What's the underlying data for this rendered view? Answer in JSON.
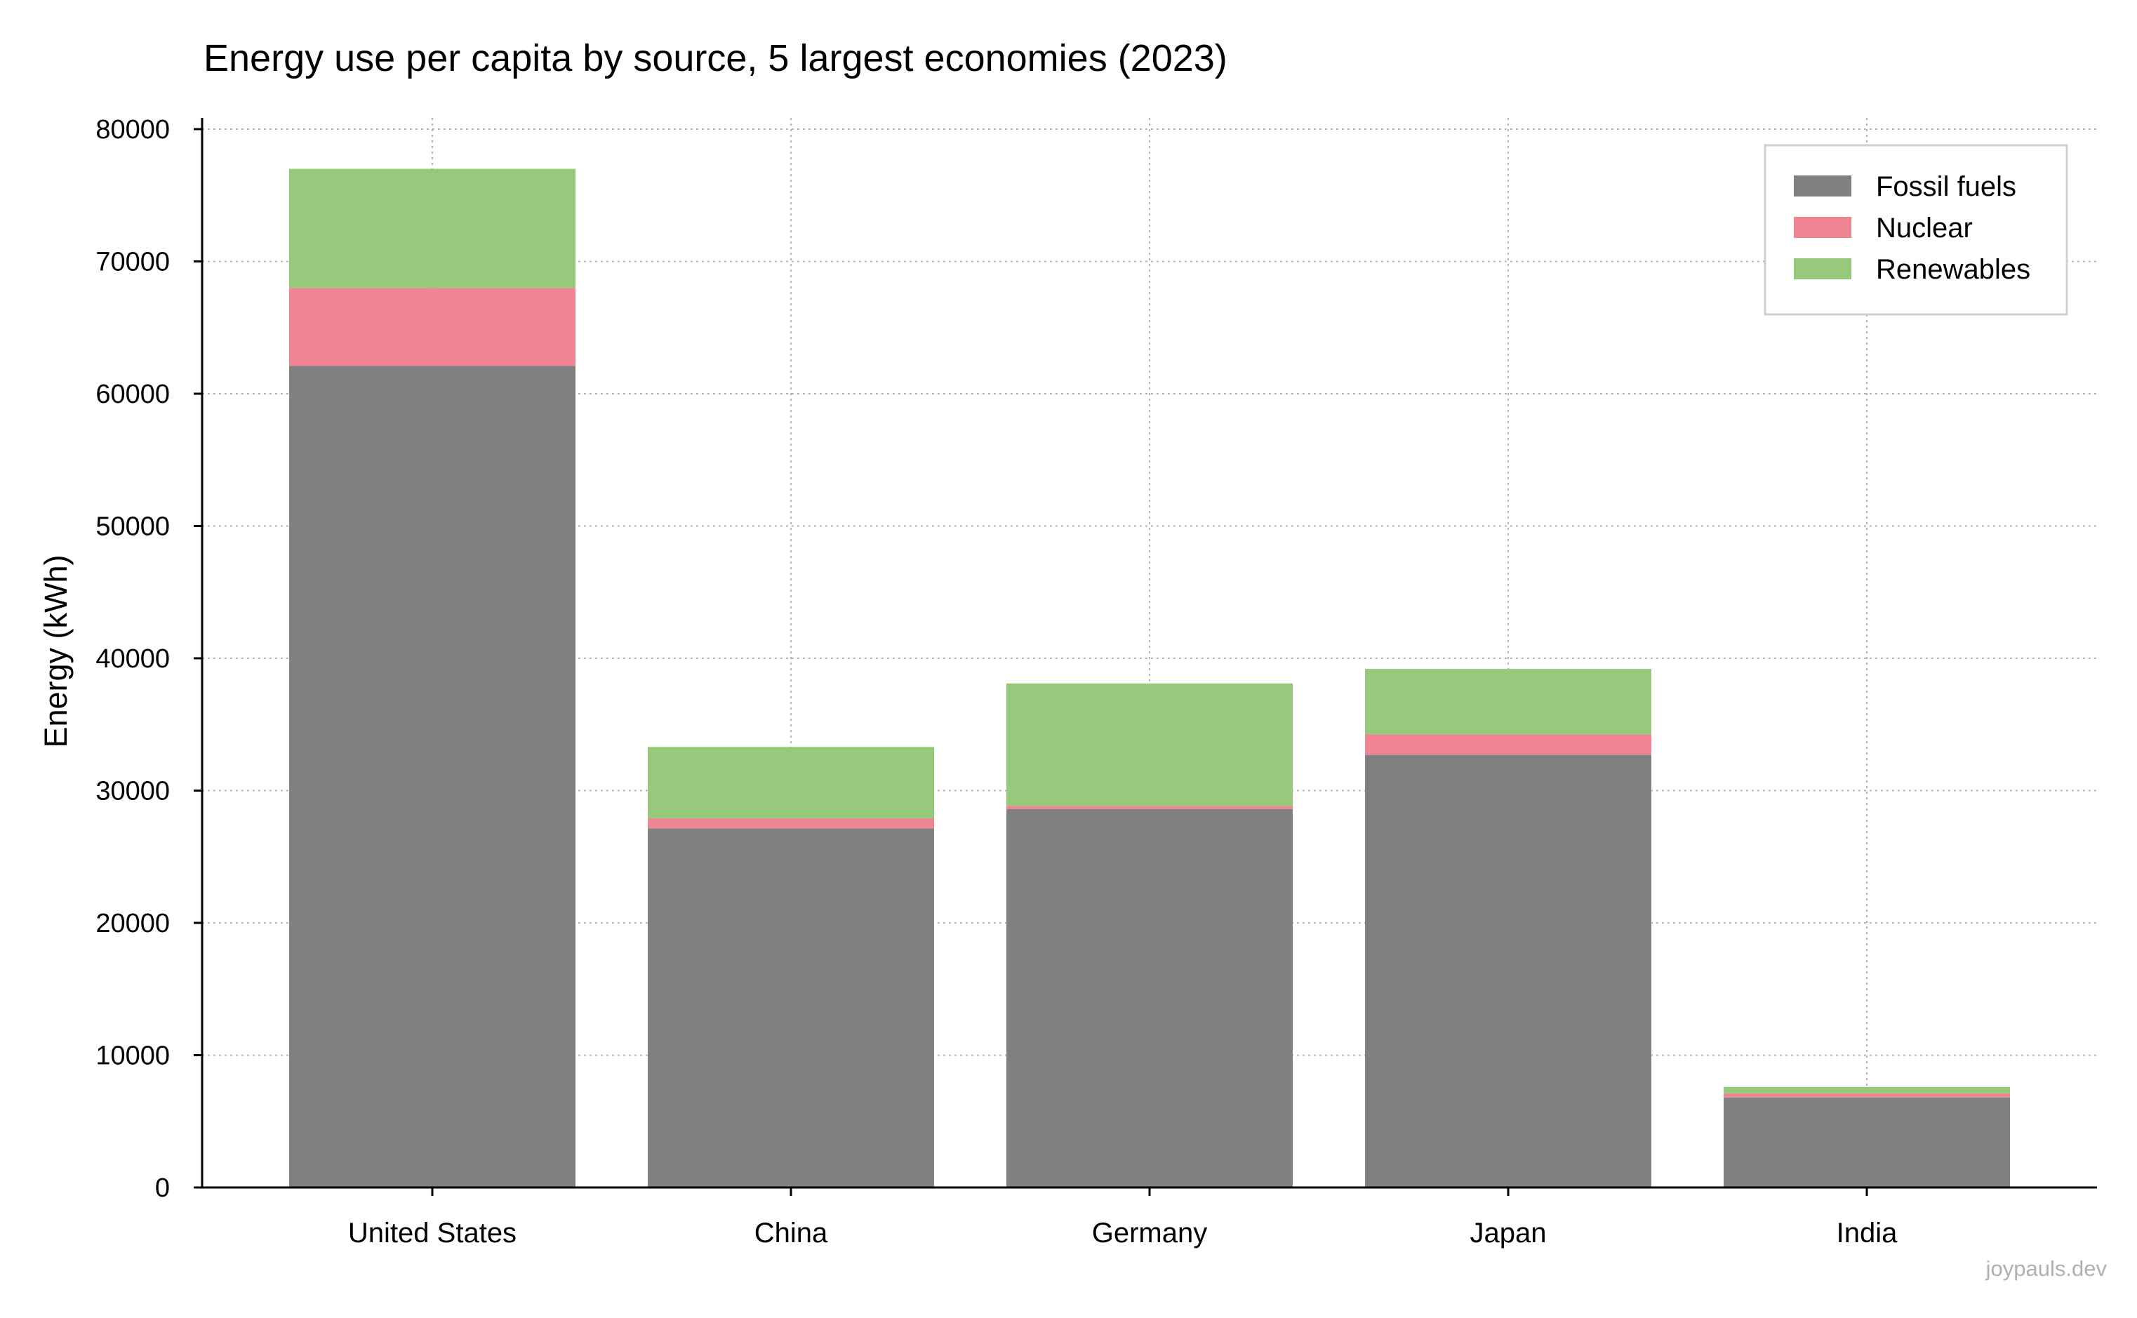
{
  "chart_data": {
    "type": "bar",
    "stacked": true,
    "title": "Energy use per capita by source, 5 largest economies (2023)",
    "xlabel": "",
    "ylabel": "Energy (kWh)",
    "categories": [
      "United States",
      "China",
      "Germany",
      "Japan",
      "India"
    ],
    "series": [
      {
        "name": "Fossil fuels",
        "color": "#808080",
        "values": [
          62100,
          27150,
          28600,
          32700,
          6800
        ]
      },
      {
        "name": "Nuclear",
        "color": "#ef8493",
        "values": [
          5900,
          750,
          250,
          1550,
          300
        ]
      },
      {
        "name": "Renewables",
        "color": "#96c97b",
        "values": [
          9000,
          5400,
          9250,
          4950,
          500
        ]
      }
    ],
    "ylim": [
      0,
      80000
    ],
    "yticks": [
      0,
      10000,
      20000,
      30000,
      40000,
      50000,
      60000,
      70000,
      80000
    ],
    "ytick_labels": [
      "0",
      "10000",
      "20000",
      "30000",
      "40000",
      "50000",
      "60000",
      "70000",
      "80000"
    ],
    "grid": true,
    "legend_position": "top-right"
  },
  "watermark": "joypauls.dev"
}
